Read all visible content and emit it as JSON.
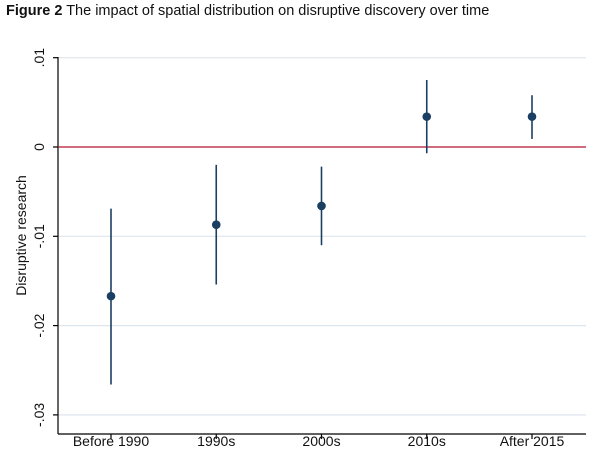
{
  "figure": {
    "label": "Figure 2",
    "title": "The impact of spatial distribution on disruptive discovery over time"
  },
  "colors": {
    "point": "#1a3f63",
    "ci_line": "#1a3f63",
    "reference_line": "#b4142d",
    "grid": "#dde6ec",
    "axis": "#000000"
  },
  "chart_data": {
    "type": "scatter",
    "subtype": "coefficient plot with confidence intervals",
    "title": "",
    "xlabel": "",
    "ylabel": "Disruptive research",
    "categories": [
      "Before 1990",
      "1990s",
      "2000s",
      "2010s",
      "After 2015"
    ],
    "series": [
      {
        "values": [
          -0.0167,
          -0.0087,
          -0.0066,
          0.0034,
          0.0034
        ],
        "ci_low": [
          -0.0266,
          -0.0154,
          -0.011,
          -0.0007,
          0.0009
        ],
        "ci_high": [
          -0.0069,
          -0.002,
          -0.0022,
          0.0075,
          0.0058
        ]
      }
    ],
    "yticks": [
      0.01,
      0,
      -0.01,
      -0.02,
      -0.03
    ],
    "ytick_labels": [
      ".01",
      "0",
      "-.01",
      "-.02",
      "-.03"
    ],
    "ylim": [
      -0.03,
      0.01
    ],
    "reference_line": 0,
    "grid": "horizontal"
  }
}
